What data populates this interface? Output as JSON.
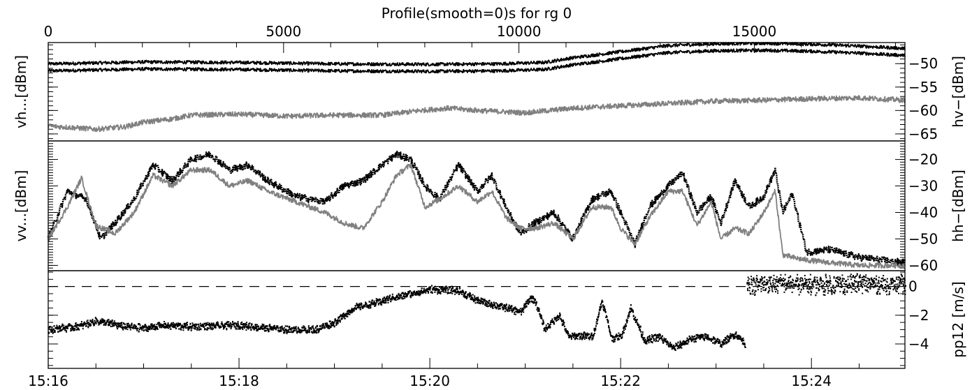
{
  "title": "Profile(smooth=0)s for rg 0",
  "colors": {
    "background": "#ffffff",
    "primary": "#000000",
    "secondary": "#808080"
  },
  "top_axis": {
    "ticks": [
      0,
      5000,
      10000,
      15000
    ],
    "range": [
      0,
      18200
    ]
  },
  "bottom_axis": {
    "ticks": [
      "15:16",
      "15:18",
      "15:20",
      "15:22",
      "15:24"
    ],
    "range_minutes": [
      0,
      8.98
    ]
  },
  "chart_data": [
    {
      "type": "line",
      "panel": "top",
      "left_label": "vh...[dBm]",
      "right_label": "hv−[dBm]",
      "yticks": [
        -50,
        -55,
        -60,
        -65
      ],
      "ylim": [
        -66.5,
        -45.5
      ],
      "series": [
        {
          "color": "#000000",
          "band": 1.5,
          "noise": 0.35,
          "x": [
            0,
            1,
            2,
            3,
            4,
            4.7,
            5.2,
            5.5,
            6,
            6.5,
            7,
            7.5,
            8,
            8.5,
            8.98
          ],
          "y": [
            -50.8,
            -50.4,
            -50.5,
            -50.8,
            -50.9,
            -50.8,
            -50.5,
            -49.5,
            -48.2,
            -46.9,
            -46.5,
            -46.4,
            -46.6,
            -47.0,
            -47.5
          ]
        },
        {
          "color": "#808080",
          "band": 0,
          "noise": 0.55,
          "x": [
            0,
            0.5,
            0.8,
            1.0,
            1.3,
            1.5,
            2.0,
            2.5,
            3.0,
            3.5,
            3.9,
            4.2,
            4.5,
            5.0,
            5.5,
            6.0,
            6.5,
            7.0,
            7.5,
            8.0,
            8.5,
            8.98
          ],
          "y": [
            -63.3,
            -64.0,
            -63.5,
            -62.5,
            -61.8,
            -61.0,
            -60.8,
            -61.2,
            -61.0,
            -61.0,
            -60.0,
            -59.5,
            -60.0,
            -60.5,
            -59.5,
            -59.0,
            -58.5,
            -58.0,
            -57.8,
            -57.5,
            -57.3,
            -57.8
          ]
        }
      ]
    },
    {
      "type": "line",
      "panel": "middle",
      "left_label": "vv...[dBm]",
      "right_label": "hh−[dBm]",
      "yticks": [
        -20,
        -30,
        -40,
        -50,
        -60
      ],
      "ylim": [
        -62,
        -13
      ],
      "series": [
        {
          "color": "#000000",
          "band": 0,
          "noise": 1.3,
          "dotted": true,
          "x": [
            0,
            0.2,
            0.4,
            0.55,
            0.7,
            0.9,
            1.1,
            1.3,
            1.5,
            1.7,
            1.9,
            2.1,
            2.3,
            2.6,
            2.9,
            3.1,
            3.3,
            3.5,
            3.65,
            3.8,
            3.95,
            4.1,
            4.3,
            4.5,
            4.65,
            4.8,
            4.95,
            5.1,
            5.3,
            5.5,
            5.7,
            5.9,
            6.0,
            6.15,
            6.3,
            6.5,
            6.65,
            6.8,
            6.95,
            7.05,
            7.2,
            7.35,
            7.5,
            7.62,
            7.7,
            7.8,
            7.95,
            8.2,
            8.5,
            8.98
          ],
          "y": [
            -50,
            -32,
            -35,
            -50,
            -44,
            -35,
            -22,
            -28,
            -20,
            -18,
            -24,
            -22,
            -28,
            -34,
            -36,
            -30,
            -28,
            -22,
            -18,
            -20,
            -30,
            -35,
            -22,
            -32,
            -26,
            -38,
            -48,
            -44,
            -40,
            -50,
            -35,
            -32,
            -40,
            -52,
            -38,
            -30,
            -25,
            -40,
            -34,
            -44,
            -28,
            -38,
            -34,
            -24,
            -40,
            -33,
            -55,
            -54,
            -57,
            -59
          ]
        },
        {
          "color": "#808080",
          "band": 0,
          "noise": 1.0,
          "x": [
            0,
            0.2,
            0.35,
            0.5,
            0.7,
            0.9,
            1.1,
            1.3,
            1.5,
            1.7,
            1.9,
            2.1,
            2.3,
            2.6,
            2.9,
            3.1,
            3.3,
            3.5,
            3.65,
            3.8,
            3.95,
            4.1,
            4.3,
            4.5,
            4.65,
            4.8,
            4.95,
            5.1,
            5.3,
            5.5,
            5.7,
            5.9,
            6.0,
            6.15,
            6.3,
            6.5,
            6.65,
            6.8,
            6.95,
            7.05,
            7.2,
            7.35,
            7.5,
            7.62,
            7.7,
            7.8,
            7.95,
            8.2,
            8.5,
            8.98
          ],
          "y": [
            -50,
            -38,
            -27,
            -45,
            -48,
            -40,
            -26,
            -30,
            -24,
            -24,
            -30,
            -28,
            -32,
            -36,
            -40,
            -44,
            -46,
            -36,
            -26,
            -22,
            -38,
            -35,
            -30,
            -36,
            -32,
            -42,
            -46,
            -46,
            -44,
            -50,
            -38,
            -38,
            -46,
            -52,
            -42,
            -32,
            -32,
            -45,
            -36,
            -50,
            -46,
            -48,
            -40,
            -32,
            -56,
            -57,
            -58,
            -59,
            -60,
            -60
          ]
        }
      ]
    },
    {
      "type": "scatter",
      "panel": "bottom",
      "right_label": "pp12 [m/s]",
      "yticks": [
        0,
        -2,
        -4
      ],
      "ylim": [
        -5.7,
        1.1
      ],
      "reference_line": 0,
      "series": [
        {
          "color": "#000000",
          "band": 0,
          "noise": 0.2,
          "x": [
            0,
            0.3,
            0.5,
            0.8,
            1.0,
            1.2,
            1.5,
            2.0,
            2.3,
            2.5,
            2.8,
            3.0,
            3.2,
            3.4,
            3.6,
            3.8,
            4.0,
            4.3,
            4.5,
            4.8,
            4.95,
            5.05,
            5.1,
            5.2,
            5.35,
            5.45,
            5.55,
            5.7,
            5.8,
            5.9,
            6.0,
            6.1,
            6.25,
            6.4,
            6.55,
            6.75,
            6.9,
            7.05,
            7.2,
            7.3
          ],
          "y": [
            -3.0,
            -2.8,
            -2.4,
            -2.8,
            -2.9,
            -2.7,
            -2.8,
            -2.7,
            -2.9,
            -3.0,
            -3.0,
            -2.5,
            -1.5,
            -1.2,
            -0.8,
            -0.5,
            -0.2,
            -0.3,
            -1.0,
            -1.5,
            -1.8,
            -0.8,
            -1.0,
            -3.0,
            -2.0,
            -3.5,
            -3.4,
            -3.5,
            -1.0,
            -3.6,
            -3.5,
            -1.5,
            -3.8,
            -3.5,
            -4.3,
            -3.6,
            -3.5,
            -4.0,
            -3.3,
            -4.0
          ]
        },
        {
          "color": "#000000",
          "band": 0,
          "noise": 0.5,
          "x": [
            7.32,
            7.7,
            8.0,
            8.5,
            8.98
          ],
          "y": [
            0.1,
            0.2,
            0.1,
            0.2,
            0.1
          ]
        }
      ]
    }
  ]
}
